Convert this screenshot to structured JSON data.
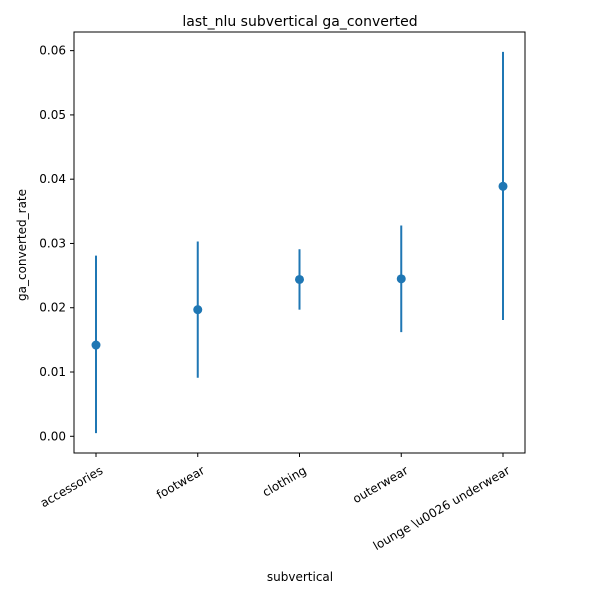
{
  "chart_data": {
    "type": "scatter",
    "title": "last_nlu subvertical ga_converted",
    "xlabel": "subvertical",
    "ylabel": "ga_converted_rate",
    "categories": [
      "accessories",
      "footwear",
      "clothing",
      "outerwear",
      "lounge \\u0026 underwear"
    ],
    "series": [
      {
        "values": [
          0.0142,
          0.0197,
          0.0244,
          0.0245,
          0.0389
        ],
        "lower": [
          0.0005,
          0.0091,
          0.0197,
          0.0162,
          0.0181
        ],
        "upper": [
          0.0281,
          0.0303,
          0.0291,
          0.0328,
          0.0598
        ]
      }
    ],
    "ylim": [
      -0.0026,
      0.0629
    ],
    "yticks": [
      0.0,
      0.01,
      0.02,
      0.03,
      0.04,
      0.05,
      0.06
    ],
    "ytick_labels": [
      "0.00",
      "0.01",
      "0.02",
      "0.03",
      "0.04",
      "0.05",
      "0.06"
    ],
    "x_tick_rotation_deg": 30,
    "marker_color": "#1f77b4",
    "grid": false,
    "legend": "none"
  }
}
